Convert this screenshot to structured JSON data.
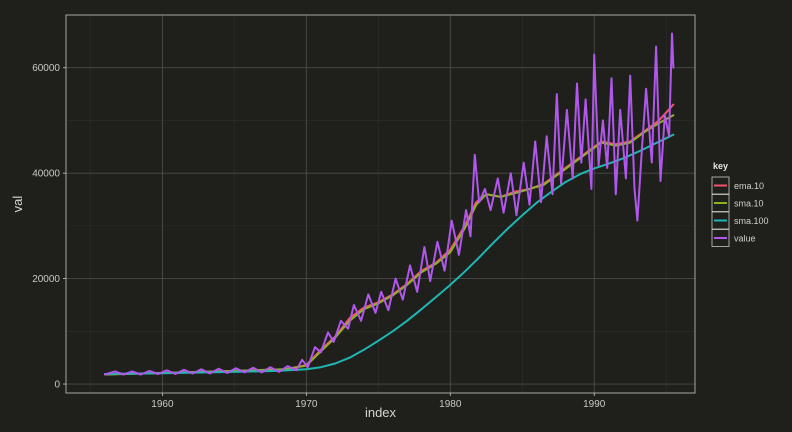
{
  "chart_data": {
    "type": "line",
    "title": "",
    "xlabel": "index",
    "ylabel": "val",
    "xlim": [
      1953.3,
      1997.0
    ],
    "ylim": [
      -1700,
      70000
    ],
    "x_ticks": [
      1960,
      1970,
      1980,
      1990
    ],
    "x_tick_labels": [
      "1960",
      "1970",
      "1980",
      "1990"
    ],
    "y_ticks": [
      0,
      20000,
      40000,
      60000
    ],
    "y_tick_labels": [
      "0",
      "20000",
      "40000",
      "60000"
    ],
    "grid": true,
    "legend": {
      "title": "key",
      "position": "right"
    },
    "colors": {
      "background": "#1f1f1c",
      "panel_border": "#c8c8c4",
      "grid_major": "#4a4a46",
      "grid_minor": "#2e2e2b"
    },
    "series": [
      {
        "name": "ema.10",
        "color": "#f0556a",
        "points": [
          [
            1956.0,
            1800
          ],
          [
            1960.0,
            2100
          ],
          [
            1965.0,
            2500
          ],
          [
            1968.5,
            2800
          ],
          [
            1970.0,
            3600
          ],
          [
            1971.0,
            6500
          ],
          [
            1972.0,
            9000
          ],
          [
            1973.0,
            12500
          ],
          [
            1974.0,
            14500
          ],
          [
            1975.0,
            15500
          ],
          [
            1976.0,
            17000
          ],
          [
            1977.0,
            19000
          ],
          [
            1978.0,
            21500
          ],
          [
            1979.0,
            23000
          ],
          [
            1980.0,
            25500
          ],
          [
            1981.0,
            30000
          ],
          [
            1981.8,
            34500
          ],
          [
            1982.5,
            36000
          ],
          [
            1983.5,
            35500
          ],
          [
            1984.5,
            36500
          ],
          [
            1985.5,
            37000
          ],
          [
            1986.5,
            38000
          ],
          [
            1987.5,
            40000
          ],
          [
            1988.5,
            42000
          ],
          [
            1989.5,
            44000
          ],
          [
            1990.5,
            46000
          ],
          [
            1991.5,
            45500
          ],
          [
            1992.5,
            46000
          ],
          [
            1993.5,
            48000
          ],
          [
            1994.5,
            50000
          ],
          [
            1995.5,
            53000
          ]
        ]
      },
      {
        "name": "sma.10",
        "color": "#8eb024",
        "points": [
          [
            1956.0,
            1800
          ],
          [
            1960.0,
            2100
          ],
          [
            1965.0,
            2500
          ],
          [
            1968.5,
            2800
          ],
          [
            1970.0,
            3500
          ],
          [
            1971.0,
            6200
          ],
          [
            1972.0,
            8800
          ],
          [
            1973.0,
            12000
          ],
          [
            1974.0,
            14200
          ],
          [
            1975.0,
            15300
          ],
          [
            1976.0,
            16800
          ],
          [
            1977.0,
            18800
          ],
          [
            1978.0,
            21200
          ],
          [
            1979.0,
            22800
          ],
          [
            1980.0,
            25000
          ],
          [
            1981.0,
            29500
          ],
          [
            1981.8,
            34000
          ],
          [
            1982.5,
            36000
          ],
          [
            1983.5,
            35500
          ],
          [
            1984.5,
            36200
          ],
          [
            1985.5,
            37000
          ],
          [
            1986.5,
            37800
          ],
          [
            1987.5,
            39800
          ],
          [
            1988.5,
            41800
          ],
          [
            1989.5,
            43800
          ],
          [
            1990.5,
            45800
          ],
          [
            1991.5,
            45200
          ],
          [
            1992.5,
            45800
          ],
          [
            1993.5,
            47800
          ],
          [
            1994.5,
            49500
          ],
          [
            1995.5,
            51000
          ]
        ]
      },
      {
        "name": "sma.100",
        "color": "#1fb6b3",
        "points": [
          [
            1956.0,
            1900
          ],
          [
            1960.0,
            2050
          ],
          [
            1965.0,
            2300
          ],
          [
            1968.0,
            2500
          ],
          [
            1970.0,
            2800
          ],
          [
            1971.0,
            3200
          ],
          [
            1972.0,
            3900
          ],
          [
            1973.0,
            5000
          ],
          [
            1974.0,
            6500
          ],
          [
            1975.0,
            8200
          ],
          [
            1976.0,
            10000
          ],
          [
            1977.0,
            12000
          ],
          [
            1978.0,
            14200
          ],
          [
            1979.0,
            16500
          ],
          [
            1980.0,
            18800
          ],
          [
            1981.0,
            21300
          ],
          [
            1982.0,
            24000
          ],
          [
            1983.0,
            26800
          ],
          [
            1984.0,
            29500
          ],
          [
            1985.0,
            32000
          ],
          [
            1986.0,
            34400
          ],
          [
            1987.0,
            36400
          ],
          [
            1988.0,
            38300
          ],
          [
            1989.0,
            39800
          ],
          [
            1990.0,
            40900
          ],
          [
            1991.0,
            41800
          ],
          [
            1992.0,
            42800
          ],
          [
            1993.0,
            44000
          ],
          [
            1994.0,
            45300
          ],
          [
            1995.5,
            47300
          ]
        ]
      },
      {
        "name": "value",
        "color": "#b057ec",
        "points": [
          [
            1956.0,
            1800
          ],
          [
            1956.7,
            2400
          ],
          [
            1957.3,
            1800
          ],
          [
            1957.9,
            2400
          ],
          [
            1958.5,
            1800
          ],
          [
            1959.1,
            2500
          ],
          [
            1959.7,
            1900
          ],
          [
            1960.3,
            2600
          ],
          [
            1960.9,
            1900
          ],
          [
            1961.5,
            2700
          ],
          [
            1962.1,
            2000
          ],
          [
            1962.7,
            2800
          ],
          [
            1963.3,
            2000
          ],
          [
            1963.9,
            2900
          ],
          [
            1964.5,
            2100
          ],
          [
            1965.1,
            3000
          ],
          [
            1965.7,
            2200
          ],
          [
            1966.3,
            3100
          ],
          [
            1966.9,
            2200
          ],
          [
            1967.5,
            3200
          ],
          [
            1968.1,
            2300
          ],
          [
            1968.7,
            3400
          ],
          [
            1969.3,
            2600
          ],
          [
            1969.7,
            4600
          ],
          [
            1970.1,
            3200
          ],
          [
            1970.6,
            7000
          ],
          [
            1971.0,
            6000
          ],
          [
            1971.5,
            9800
          ],
          [
            1971.9,
            8000
          ],
          [
            1972.4,
            12000
          ],
          [
            1972.9,
            10500
          ],
          [
            1973.3,
            15000
          ],
          [
            1973.8,
            12000
          ],
          [
            1974.3,
            17000
          ],
          [
            1974.8,
            13500
          ],
          [
            1975.2,
            17500
          ],
          [
            1975.7,
            14000
          ],
          [
            1976.2,
            20000
          ],
          [
            1976.7,
            16000
          ],
          [
            1977.2,
            22500
          ],
          [
            1977.7,
            17500
          ],
          [
            1978.2,
            26000
          ],
          [
            1978.6,
            19500
          ],
          [
            1979.1,
            27000
          ],
          [
            1979.6,
            21500
          ],
          [
            1980.1,
            31000
          ],
          [
            1980.6,
            24500
          ],
          [
            1981.1,
            33000
          ],
          [
            1981.4,
            28000
          ],
          [
            1981.7,
            43500
          ],
          [
            1982.0,
            34500
          ],
          [
            1982.4,
            37000
          ],
          [
            1982.8,
            33000
          ],
          [
            1983.3,
            39000
          ],
          [
            1983.7,
            32500
          ],
          [
            1984.2,
            40000
          ],
          [
            1984.6,
            32000
          ],
          [
            1985.1,
            42000
          ],
          [
            1985.5,
            34000
          ],
          [
            1985.9,
            46000
          ],
          [
            1986.3,
            34500
          ],
          [
            1986.7,
            47000
          ],
          [
            1987.1,
            36000
          ],
          [
            1987.4,
            55000
          ],
          [
            1987.7,
            38000
          ],
          [
            1988.1,
            52000
          ],
          [
            1988.5,
            39000
          ],
          [
            1988.8,
            57000
          ],
          [
            1989.1,
            42000
          ],
          [
            1989.4,
            54000
          ],
          [
            1989.8,
            37000
          ],
          [
            1990.0,
            62500
          ],
          [
            1990.3,
            41500
          ],
          [
            1990.6,
            50000
          ],
          [
            1990.9,
            41000
          ],
          [
            1991.2,
            58000
          ],
          [
            1991.5,
            36000
          ],
          [
            1991.8,
            52000
          ],
          [
            1992.2,
            39000
          ],
          [
            1992.5,
            58500
          ],
          [
            1992.8,
            37000
          ],
          [
            1993.0,
            31000
          ],
          [
            1993.3,
            44000
          ],
          [
            1993.6,
            56000
          ],
          [
            1994.0,
            42000
          ],
          [
            1994.3,
            64000
          ],
          [
            1994.6,
            38500
          ],
          [
            1994.9,
            51000
          ],
          [
            1995.2,
            47000
          ],
          [
            1995.4,
            66500
          ],
          [
            1995.5,
            60000
          ]
        ]
      }
    ]
  }
}
